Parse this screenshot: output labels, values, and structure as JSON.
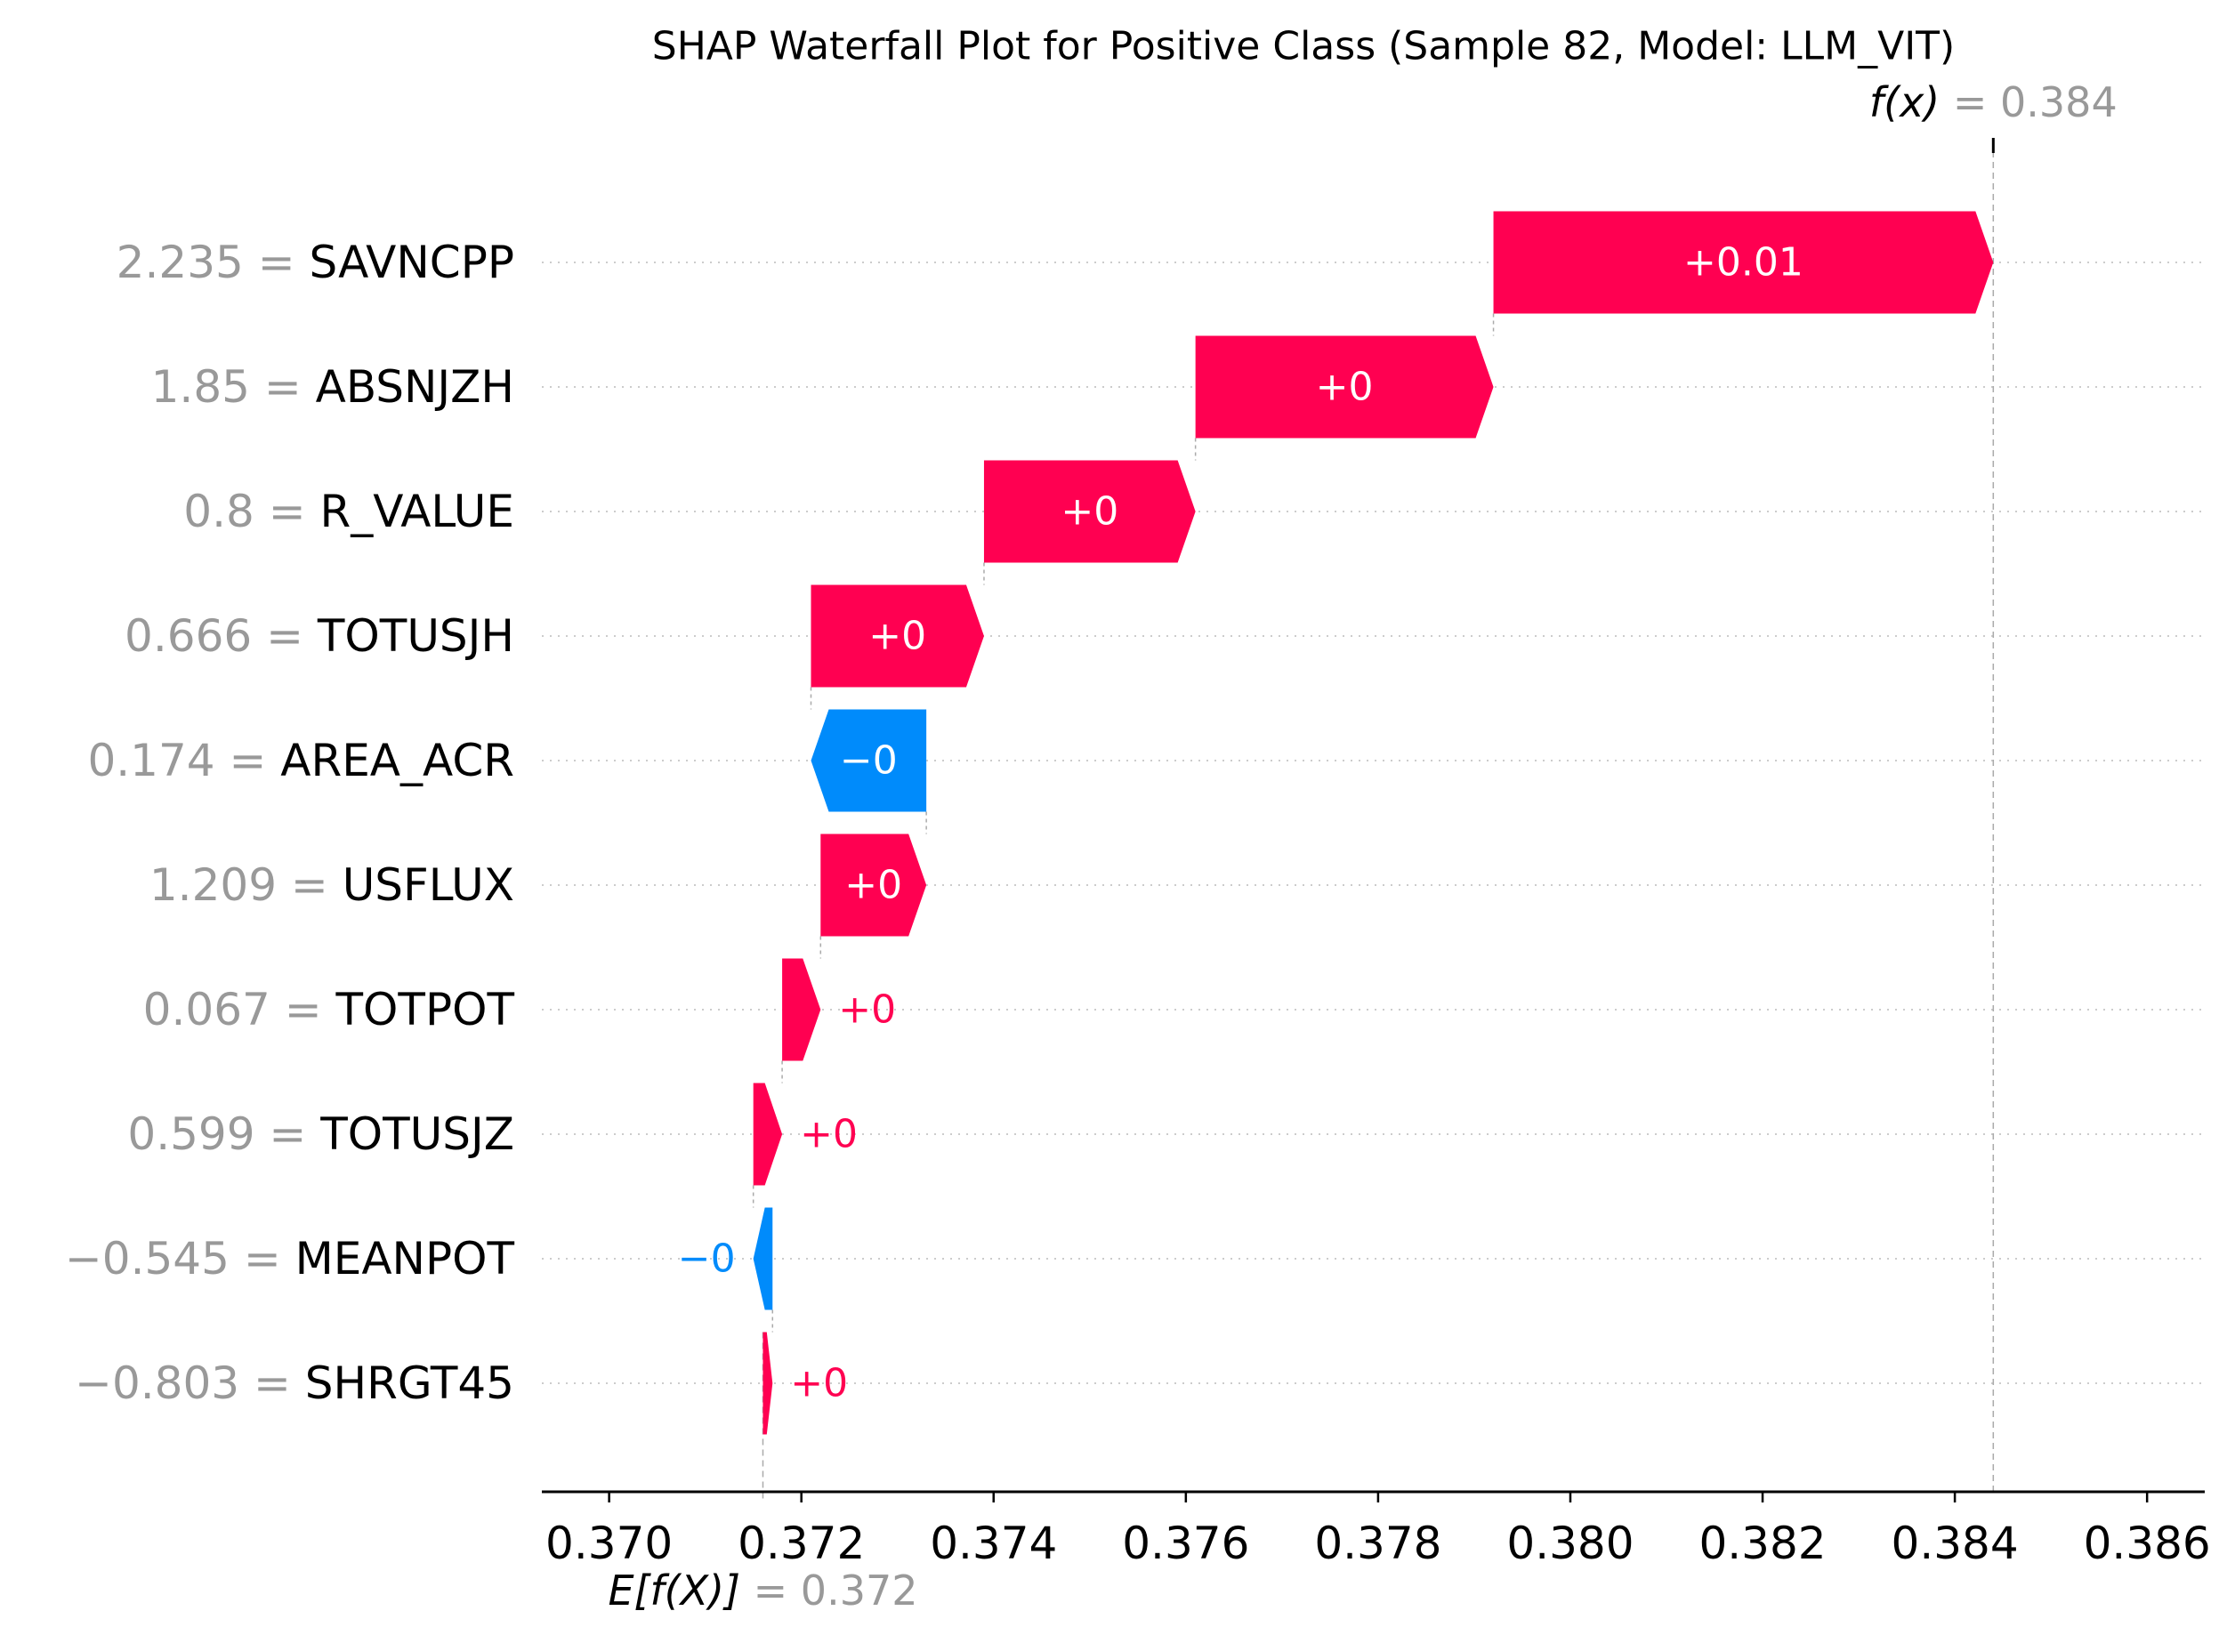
{
  "chart_data": {
    "type": "waterfall",
    "title": "SHAP Waterfall Plot for Positive Class (Sample 82, Model: LLM_VIT)",
    "base_value": 0.3716,
    "base_label_prefix": "E[f(X)]",
    "base_label_value": "= 0.372",
    "output_value": 0.3844,
    "output_label_prefix": "f(x)",
    "output_label_value": "= 0.384",
    "xlim": [
      0.3693,
      0.3866
    ],
    "xticks": [
      0.37,
      0.372,
      0.374,
      0.376,
      0.378,
      0.38,
      0.382,
      0.384,
      0.386
    ],
    "xtick_labels": [
      "0.370",
      "0.372",
      "0.374",
      "0.376",
      "0.378",
      "0.380",
      "0.382",
      "0.384",
      "0.386"
    ],
    "colors": {
      "positive": "#ff0051",
      "negative": "#008bfb",
      "value_gray": "#999999",
      "text": "#000000",
      "grid": "#cccccc"
    },
    "features": [
      {
        "value": "2.235",
        "name": "SAVNCPP",
        "shap": 0.0052,
        "label": "+0.01"
      },
      {
        "value": "1.85",
        "name": "ABSNJZH",
        "shap": 0.0031,
        "label": "+0"
      },
      {
        "value": "0.8",
        "name": "R_VALUE",
        "shap": 0.0022,
        "label": "+0"
      },
      {
        "value": "0.666",
        "name": "TOTUSJH",
        "shap": 0.0018,
        "label": "+0"
      },
      {
        "value": "0.174",
        "name": "AREA_ACR",
        "shap": -0.0012,
        "label": "−0"
      },
      {
        "value": "1.209",
        "name": "USFLUX",
        "shap": 0.0011,
        "label": "+0"
      },
      {
        "value": "0.067",
        "name": "TOTPOT",
        "shap": 0.0004,
        "label": "+0"
      },
      {
        "value": "0.599",
        "name": "TOTUSJZ",
        "shap": 0.0003,
        "label": "+0"
      },
      {
        "value": "−0.545",
        "name": "MEANPOT",
        "shap": -0.0002,
        "label": "−0"
      },
      {
        "value": "−0.803",
        "name": "SHRGT45",
        "shap": 0.0001,
        "label": "+0"
      }
    ]
  }
}
